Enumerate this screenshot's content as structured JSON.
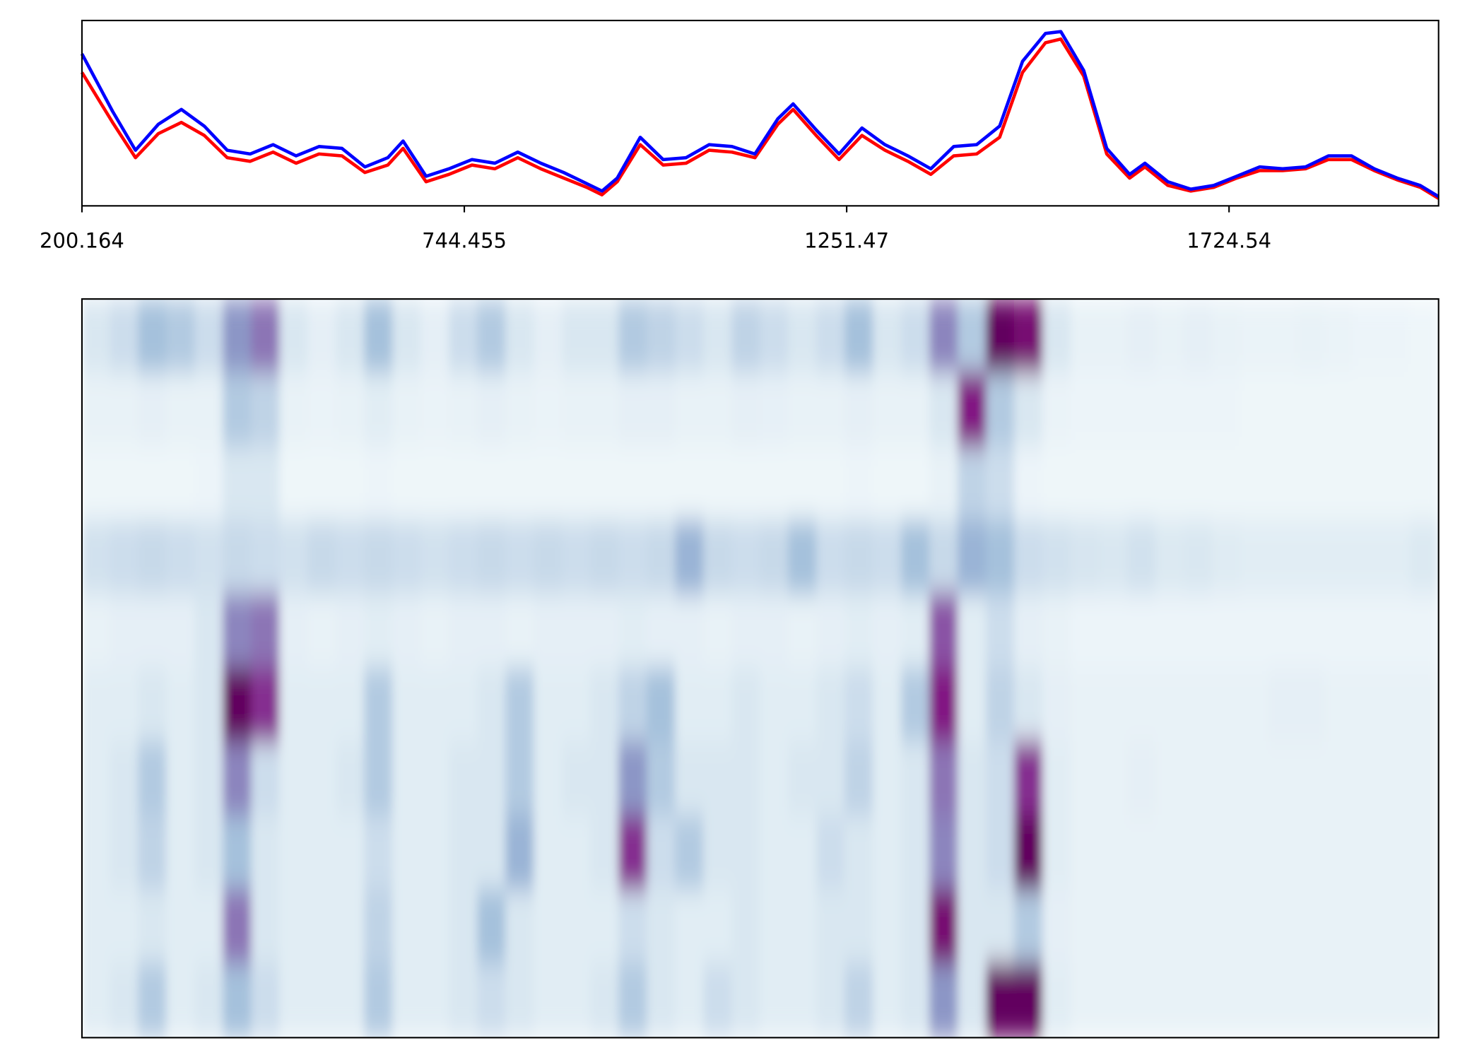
{
  "chart_data": [
    {
      "type": "line",
      "x": [
        0,
        20,
        35,
        50,
        65,
        80,
        95,
        110,
        125,
        140,
        155,
        170,
        185,
        200,
        210,
        225,
        240,
        255,
        270,
        285,
        300,
        315,
        330,
        340,
        350,
        365,
        380,
        395,
        410,
        425,
        440,
        455,
        465,
        480,
        495,
        510,
        525,
        540,
        555,
        570,
        585,
        600,
        615,
        630,
        640,
        655,
        670,
        685,
        695,
        710,
        725,
        740,
        755,
        770,
        785,
        800,
        815,
        830,
        845,
        860,
        875,
        887
      ],
      "xlim": [
        0,
        887
      ],
      "ylim": [
        0,
        1
      ],
      "xticks": [
        {
          "value": 0,
          "label": "200.164"
        },
        {
          "value": 250,
          "label": "744.455"
        },
        {
          "value": 500,
          "label": "1251.47"
        },
        {
          "value": 750,
          "label": "1724.54"
        }
      ],
      "series": [
        {
          "color": "#ff0000",
          "values": [
            0.72,
            0.45,
            0.26,
            0.39,
            0.45,
            0.38,
            0.26,
            0.24,
            0.29,
            0.23,
            0.28,
            0.27,
            0.18,
            0.22,
            0.31,
            0.13,
            0.17,
            0.22,
            0.2,
            0.26,
            0.2,
            0.15,
            0.1,
            0.06,
            0.13,
            0.33,
            0.22,
            0.23,
            0.3,
            0.29,
            0.26,
            0.44,
            0.52,
            0.38,
            0.25,
            0.38,
            0.3,
            0.24,
            0.17,
            0.27,
            0.28,
            0.37,
            0.72,
            0.88,
            0.9,
            0.7,
            0.28,
            0.15,
            0.21,
            0.11,
            0.08,
            0.1,
            0.15,
            0.19,
            0.19,
            0.2,
            0.25,
            0.25,
            0.19,
            0.14,
            0.1,
            0.04
          ]
        },
        {
          "color": "#0000ff",
          "values": [
            0.82,
            0.51,
            0.3,
            0.44,
            0.52,
            0.43,
            0.3,
            0.28,
            0.33,
            0.27,
            0.32,
            0.31,
            0.21,
            0.26,
            0.35,
            0.16,
            0.2,
            0.25,
            0.23,
            0.29,
            0.23,
            0.18,
            0.12,
            0.08,
            0.15,
            0.37,
            0.25,
            0.26,
            0.33,
            0.32,
            0.28,
            0.47,
            0.55,
            0.41,
            0.28,
            0.42,
            0.33,
            0.27,
            0.2,
            0.32,
            0.33,
            0.43,
            0.78,
            0.93,
            0.94,
            0.73,
            0.31,
            0.17,
            0.23,
            0.13,
            0.09,
            0.11,
            0.16,
            0.21,
            0.2,
            0.21,
            0.27,
            0.27,
            0.2,
            0.15,
            0.11,
            0.05
          ]
        }
      ]
    },
    {
      "type": "heatmap",
      "clim": [
        0,
        1
      ],
      "colors": [
        "#f7fcfd",
        "#e0ecf4",
        "#bfd3e6",
        "#9ebcda",
        "#8c96c6",
        "#8c6bb1",
        "#88419d",
        "#810f7c",
        "#4d004b"
      ],
      "z": [
        [
          0.15,
          0.2,
          0.35,
          0.3,
          0.2,
          0.5,
          0.6,
          0.15,
          0.1,
          0.15,
          0.35,
          0.15,
          0.1,
          0.2,
          0.3,
          0.15,
          0.1,
          0.15,
          0.15,
          0.3,
          0.25,
          0.2,
          0.15,
          0.25,
          0.2,
          0.15,
          0.2,
          0.35,
          0.15,
          0.2,
          0.55,
          0.3,
          0.95,
          0.9,
          0.15,
          0.08,
          0.08,
          0.1,
          0.08,
          0.1,
          0.08,
          0.07,
          0.07,
          0.08,
          0.07,
          0.06,
          0.06,
          0.05
        ],
        [
          0.08,
          0.08,
          0.1,
          0.08,
          0.08,
          0.3,
          0.25,
          0.08,
          0.07,
          0.08,
          0.12,
          0.08,
          0.07,
          0.08,
          0.1,
          0.08,
          0.07,
          0.08,
          0.08,
          0.1,
          0.1,
          0.08,
          0.08,
          0.1,
          0.09,
          0.08,
          0.08,
          0.1,
          0.08,
          0.08,
          0.15,
          0.85,
          0.3,
          0.15,
          0.07,
          0.06,
          0.06,
          0.06,
          0.06,
          0.06,
          0.06,
          0.05,
          0.05,
          0.05,
          0.05,
          0.05,
          0.05,
          0.05
        ],
        [
          0.05,
          0.05,
          0.05,
          0.05,
          0.06,
          0.15,
          0.15,
          0.05,
          0.05,
          0.05,
          0.06,
          0.05,
          0.05,
          0.05,
          0.05,
          0.05,
          0.05,
          0.05,
          0.05,
          0.05,
          0.05,
          0.05,
          0.05,
          0.05,
          0.05,
          0.05,
          0.05,
          0.06,
          0.05,
          0.05,
          0.08,
          0.25,
          0.2,
          0.06,
          0.05,
          0.05,
          0.05,
          0.05,
          0.05,
          0.05,
          0.05,
          0.05,
          0.05,
          0.05,
          0.05,
          0.05,
          0.05,
          0.05
        ],
        [
          0.18,
          0.2,
          0.22,
          0.2,
          0.18,
          0.22,
          0.2,
          0.18,
          0.22,
          0.2,
          0.22,
          0.2,
          0.18,
          0.2,
          0.22,
          0.2,
          0.22,
          0.2,
          0.22,
          0.2,
          0.22,
          0.4,
          0.22,
          0.2,
          0.22,
          0.35,
          0.2,
          0.22,
          0.2,
          0.35,
          0.22,
          0.4,
          0.35,
          0.2,
          0.18,
          0.16,
          0.15,
          0.18,
          0.14,
          0.15,
          0.13,
          0.12,
          0.12,
          0.12,
          0.12,
          0.12,
          0.12,
          0.14
        ],
        [
          0.08,
          0.1,
          0.1,
          0.1,
          0.15,
          0.55,
          0.6,
          0.1,
          0.08,
          0.1,
          0.12,
          0.1,
          0.08,
          0.1,
          0.1,
          0.08,
          0.1,
          0.1,
          0.1,
          0.12,
          0.1,
          0.1,
          0.08,
          0.1,
          0.1,
          0.08,
          0.1,
          0.12,
          0.1,
          0.12,
          0.7,
          0.12,
          0.2,
          0.1,
          0.08,
          0.06,
          0.06,
          0.06,
          0.06,
          0.06,
          0.06,
          0.06,
          0.06,
          0.06,
          0.06,
          0.06,
          0.06,
          0.06
        ],
        [
          0.12,
          0.12,
          0.15,
          0.12,
          0.15,
          0.95,
          0.8,
          0.12,
          0.12,
          0.12,
          0.3,
          0.12,
          0.12,
          0.12,
          0.15,
          0.3,
          0.12,
          0.12,
          0.15,
          0.25,
          0.35,
          0.12,
          0.12,
          0.15,
          0.12,
          0.12,
          0.15,
          0.2,
          0.12,
          0.3,
          0.85,
          0.12,
          0.25,
          0.15,
          0.1,
          0.08,
          0.08,
          0.08,
          0.08,
          0.08,
          0.08,
          0.08,
          0.1,
          0.1,
          0.08,
          0.08,
          0.08,
          0.08
        ],
        [
          0.12,
          0.15,
          0.3,
          0.12,
          0.15,
          0.55,
          0.2,
          0.12,
          0.12,
          0.15,
          0.3,
          0.12,
          0.12,
          0.15,
          0.15,
          0.3,
          0.12,
          0.15,
          0.15,
          0.5,
          0.3,
          0.15,
          0.15,
          0.15,
          0.12,
          0.15,
          0.15,
          0.25,
          0.12,
          0.15,
          0.6,
          0.15,
          0.2,
          0.8,
          0.12,
          0.08,
          0.08,
          0.1,
          0.08,
          0.08,
          0.08,
          0.08,
          0.08,
          0.08,
          0.08,
          0.08,
          0.08,
          0.08
        ],
        [
          0.12,
          0.15,
          0.25,
          0.12,
          0.15,
          0.35,
          0.15,
          0.12,
          0.12,
          0.12,
          0.2,
          0.12,
          0.12,
          0.15,
          0.15,
          0.4,
          0.12,
          0.12,
          0.15,
          0.8,
          0.2,
          0.3,
          0.15,
          0.15,
          0.12,
          0.12,
          0.2,
          0.15,
          0.12,
          0.15,
          0.55,
          0.15,
          0.2,
          0.95,
          0.12,
          0.08,
          0.08,
          0.08,
          0.08,
          0.08,
          0.08,
          0.08,
          0.08,
          0.08,
          0.08,
          0.08,
          0.08,
          0.08
        ],
        [
          0.12,
          0.12,
          0.15,
          0.12,
          0.12,
          0.6,
          0.15,
          0.12,
          0.12,
          0.12,
          0.25,
          0.12,
          0.12,
          0.15,
          0.35,
          0.15,
          0.12,
          0.12,
          0.12,
          0.2,
          0.15,
          0.12,
          0.12,
          0.15,
          0.12,
          0.12,
          0.15,
          0.15,
          0.12,
          0.15,
          0.9,
          0.15,
          0.15,
          0.3,
          0.1,
          0.08,
          0.08,
          0.08,
          0.08,
          0.08,
          0.08,
          0.08,
          0.08,
          0.08,
          0.08,
          0.08,
          0.08,
          0.08
        ],
        [
          0.12,
          0.15,
          0.3,
          0.12,
          0.15,
          0.35,
          0.2,
          0.12,
          0.12,
          0.12,
          0.3,
          0.12,
          0.12,
          0.15,
          0.2,
          0.15,
          0.12,
          0.12,
          0.15,
          0.3,
          0.15,
          0.12,
          0.2,
          0.15,
          0.12,
          0.12,
          0.15,
          0.25,
          0.12,
          0.15,
          0.5,
          0.15,
          0.95,
          0.95,
          0.12,
          0.08,
          0.08,
          0.08,
          0.08,
          0.08,
          0.08,
          0.08,
          0.08,
          0.08,
          0.08,
          0.08,
          0.08,
          0.08
        ]
      ]
    }
  ]
}
